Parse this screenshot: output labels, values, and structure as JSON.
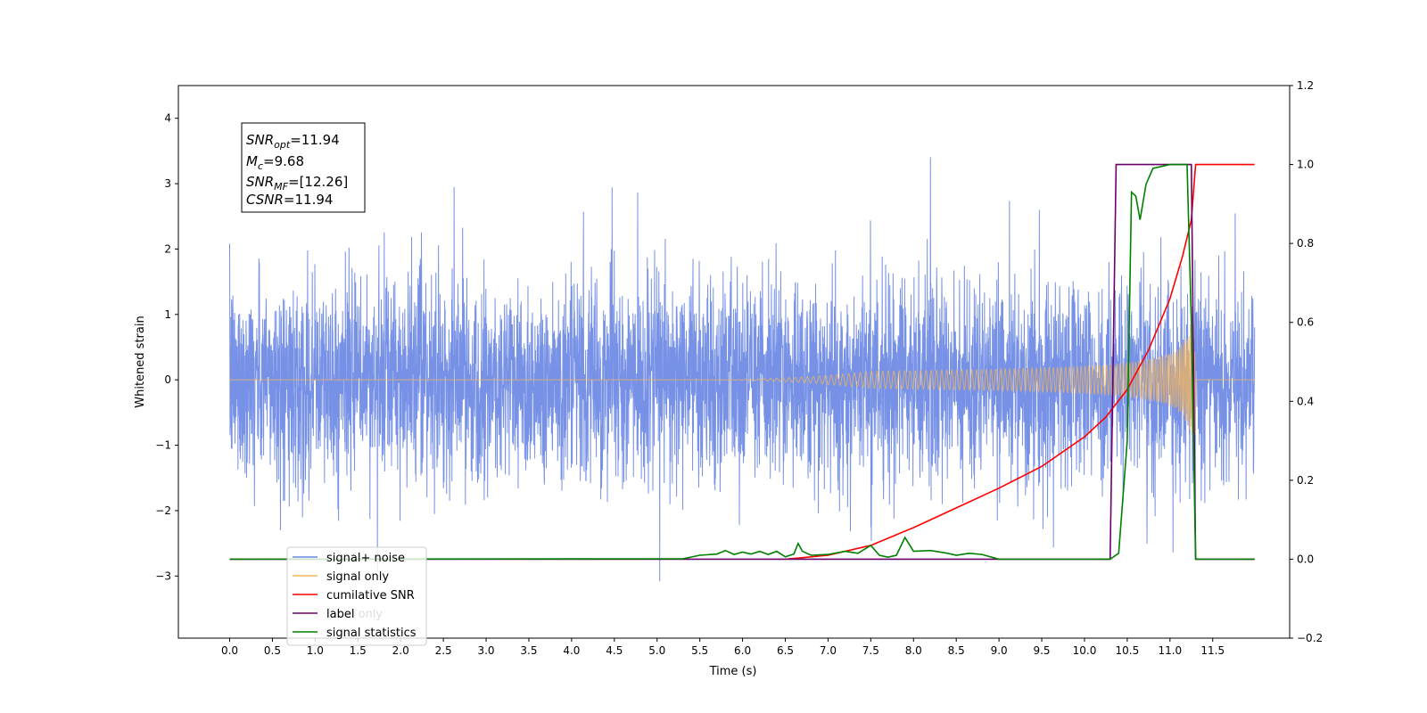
{
  "chart_data": {
    "type": "line",
    "xlabel": "Time (s)",
    "ylabel": "Whitened strain",
    "xlim": [
      -0.6,
      12.4
    ],
    "ylim_left": [
      -3.95,
      4.5
    ],
    "ylim_right": [
      -0.2,
      1.2
    ],
    "x_ticks": [
      "0.0",
      "0.5",
      "1.0",
      "1.5",
      "2.0",
      "2.5",
      "3.0",
      "3.5",
      "4.0",
      "4.5",
      "5.0",
      "5.5",
      "6.0",
      "6.5",
      "7.0",
      "7.5",
      "8.0",
      "8.5",
      "9.0",
      "9.5",
      "10.0",
      "10.5",
      "11.0",
      "11.5"
    ],
    "y_ticks_left": [
      "−3",
      "−2",
      "−1",
      "0",
      "1",
      "2",
      "3",
      "4"
    ],
    "y_ticks_right": [
      "−0.2",
      "0.0",
      "0.2",
      "0.4",
      "0.6",
      "0.8",
      "1.0",
      "1.2"
    ],
    "grid": false,
    "legend_position": "lower-left",
    "annotation": {
      "snr_opt": "=11.94",
      "mc": "=9.68",
      "snr_mf": "=[12.26]",
      "csnr": "=11.94"
    },
    "series": [
      {
        "name": "signal+ noise",
        "color": "#6a88e4",
        "axis": "left",
        "description": "white noise, std≈0.75, x 0.0–11.99",
        "noise_std": 0.75,
        "x_range": [
          0.0,
          11.99
        ]
      },
      {
        "name": "signal only",
        "color": "#f5b55a",
        "axis": "left",
        "chirp": {
          "tc": 11.3,
          "amp_end": 0.95
        }
      },
      {
        "name": "cumilative SNR",
        "color": "#ff0000",
        "axis": "right",
        "points": [
          [
            6.5,
            0.0
          ],
          [
            7.0,
            0.01
          ],
          [
            7.5,
            0.035
          ],
          [
            8.0,
            0.08
          ],
          [
            8.5,
            0.13
          ],
          [
            9.0,
            0.18
          ],
          [
            9.5,
            0.235
          ],
          [
            10.0,
            0.31
          ],
          [
            10.25,
            0.36
          ],
          [
            10.5,
            0.43
          ],
          [
            10.75,
            0.53
          ],
          [
            11.0,
            0.66
          ],
          [
            11.15,
            0.77
          ],
          [
            11.25,
            0.86
          ],
          [
            11.3,
            1.0
          ],
          [
            11.99,
            1.0
          ]
        ]
      },
      {
        "name": "label",
        "color": "#6b006b",
        "axis": "right",
        "points": [
          [
            0.0,
            0.0
          ],
          [
            10.3,
            0.0
          ],
          [
            10.37,
            1.0
          ],
          [
            11.25,
            1.0
          ],
          [
            11.3,
            0.0
          ],
          [
            11.99,
            0.0
          ]
        ]
      },
      {
        "name": "signal statistics",
        "color": "#008000",
        "axis": "right",
        "points": [
          [
            0.0,
            0.0
          ],
          [
            5.3,
            0.001
          ],
          [
            5.5,
            0.01
          ],
          [
            5.7,
            0.013
          ],
          [
            5.8,
            0.022
          ],
          [
            5.9,
            0.012
          ],
          [
            6.0,
            0.018
          ],
          [
            6.1,
            0.013
          ],
          [
            6.2,
            0.02
          ],
          [
            6.3,
            0.012
          ],
          [
            6.4,
            0.02
          ],
          [
            6.5,
            0.006
          ],
          [
            6.6,
            0.013
          ],
          [
            6.65,
            0.04
          ],
          [
            6.7,
            0.02
          ],
          [
            6.8,
            0.01
          ],
          [
            7.0,
            0.012
          ],
          [
            7.2,
            0.02
          ],
          [
            7.35,
            0.015
          ],
          [
            7.5,
            0.035
          ],
          [
            7.6,
            0.01
          ],
          [
            7.7,
            0.005
          ],
          [
            7.8,
            0.01
          ],
          [
            7.9,
            0.055
          ],
          [
            8.0,
            0.02
          ],
          [
            8.2,
            0.022
          ],
          [
            8.4,
            0.015
          ],
          [
            8.5,
            0.01
          ],
          [
            8.65,
            0.015
          ],
          [
            8.8,
            0.012
          ],
          [
            9.0,
            0.0
          ],
          [
            10.3,
            0.0
          ],
          [
            10.4,
            0.015
          ],
          [
            10.5,
            0.3
          ],
          [
            10.55,
            0.93
          ],
          [
            10.6,
            0.92
          ],
          [
            10.65,
            0.86
          ],
          [
            10.72,
            0.95
          ],
          [
            10.8,
            0.99
          ],
          [
            11.0,
            1.0
          ],
          [
            11.2,
            1.0
          ],
          [
            11.25,
            0.6
          ],
          [
            11.3,
            0.0
          ],
          [
            11.99,
            0.0
          ]
        ]
      }
    ]
  },
  "legend": {
    "signal_noise": "signal+ noise",
    "signal_only": "signal only",
    "cum_snr": "cumilative SNR",
    "label": "label",
    "hidden_label_only": "label only",
    "signal_statistics": "signal statistics"
  }
}
